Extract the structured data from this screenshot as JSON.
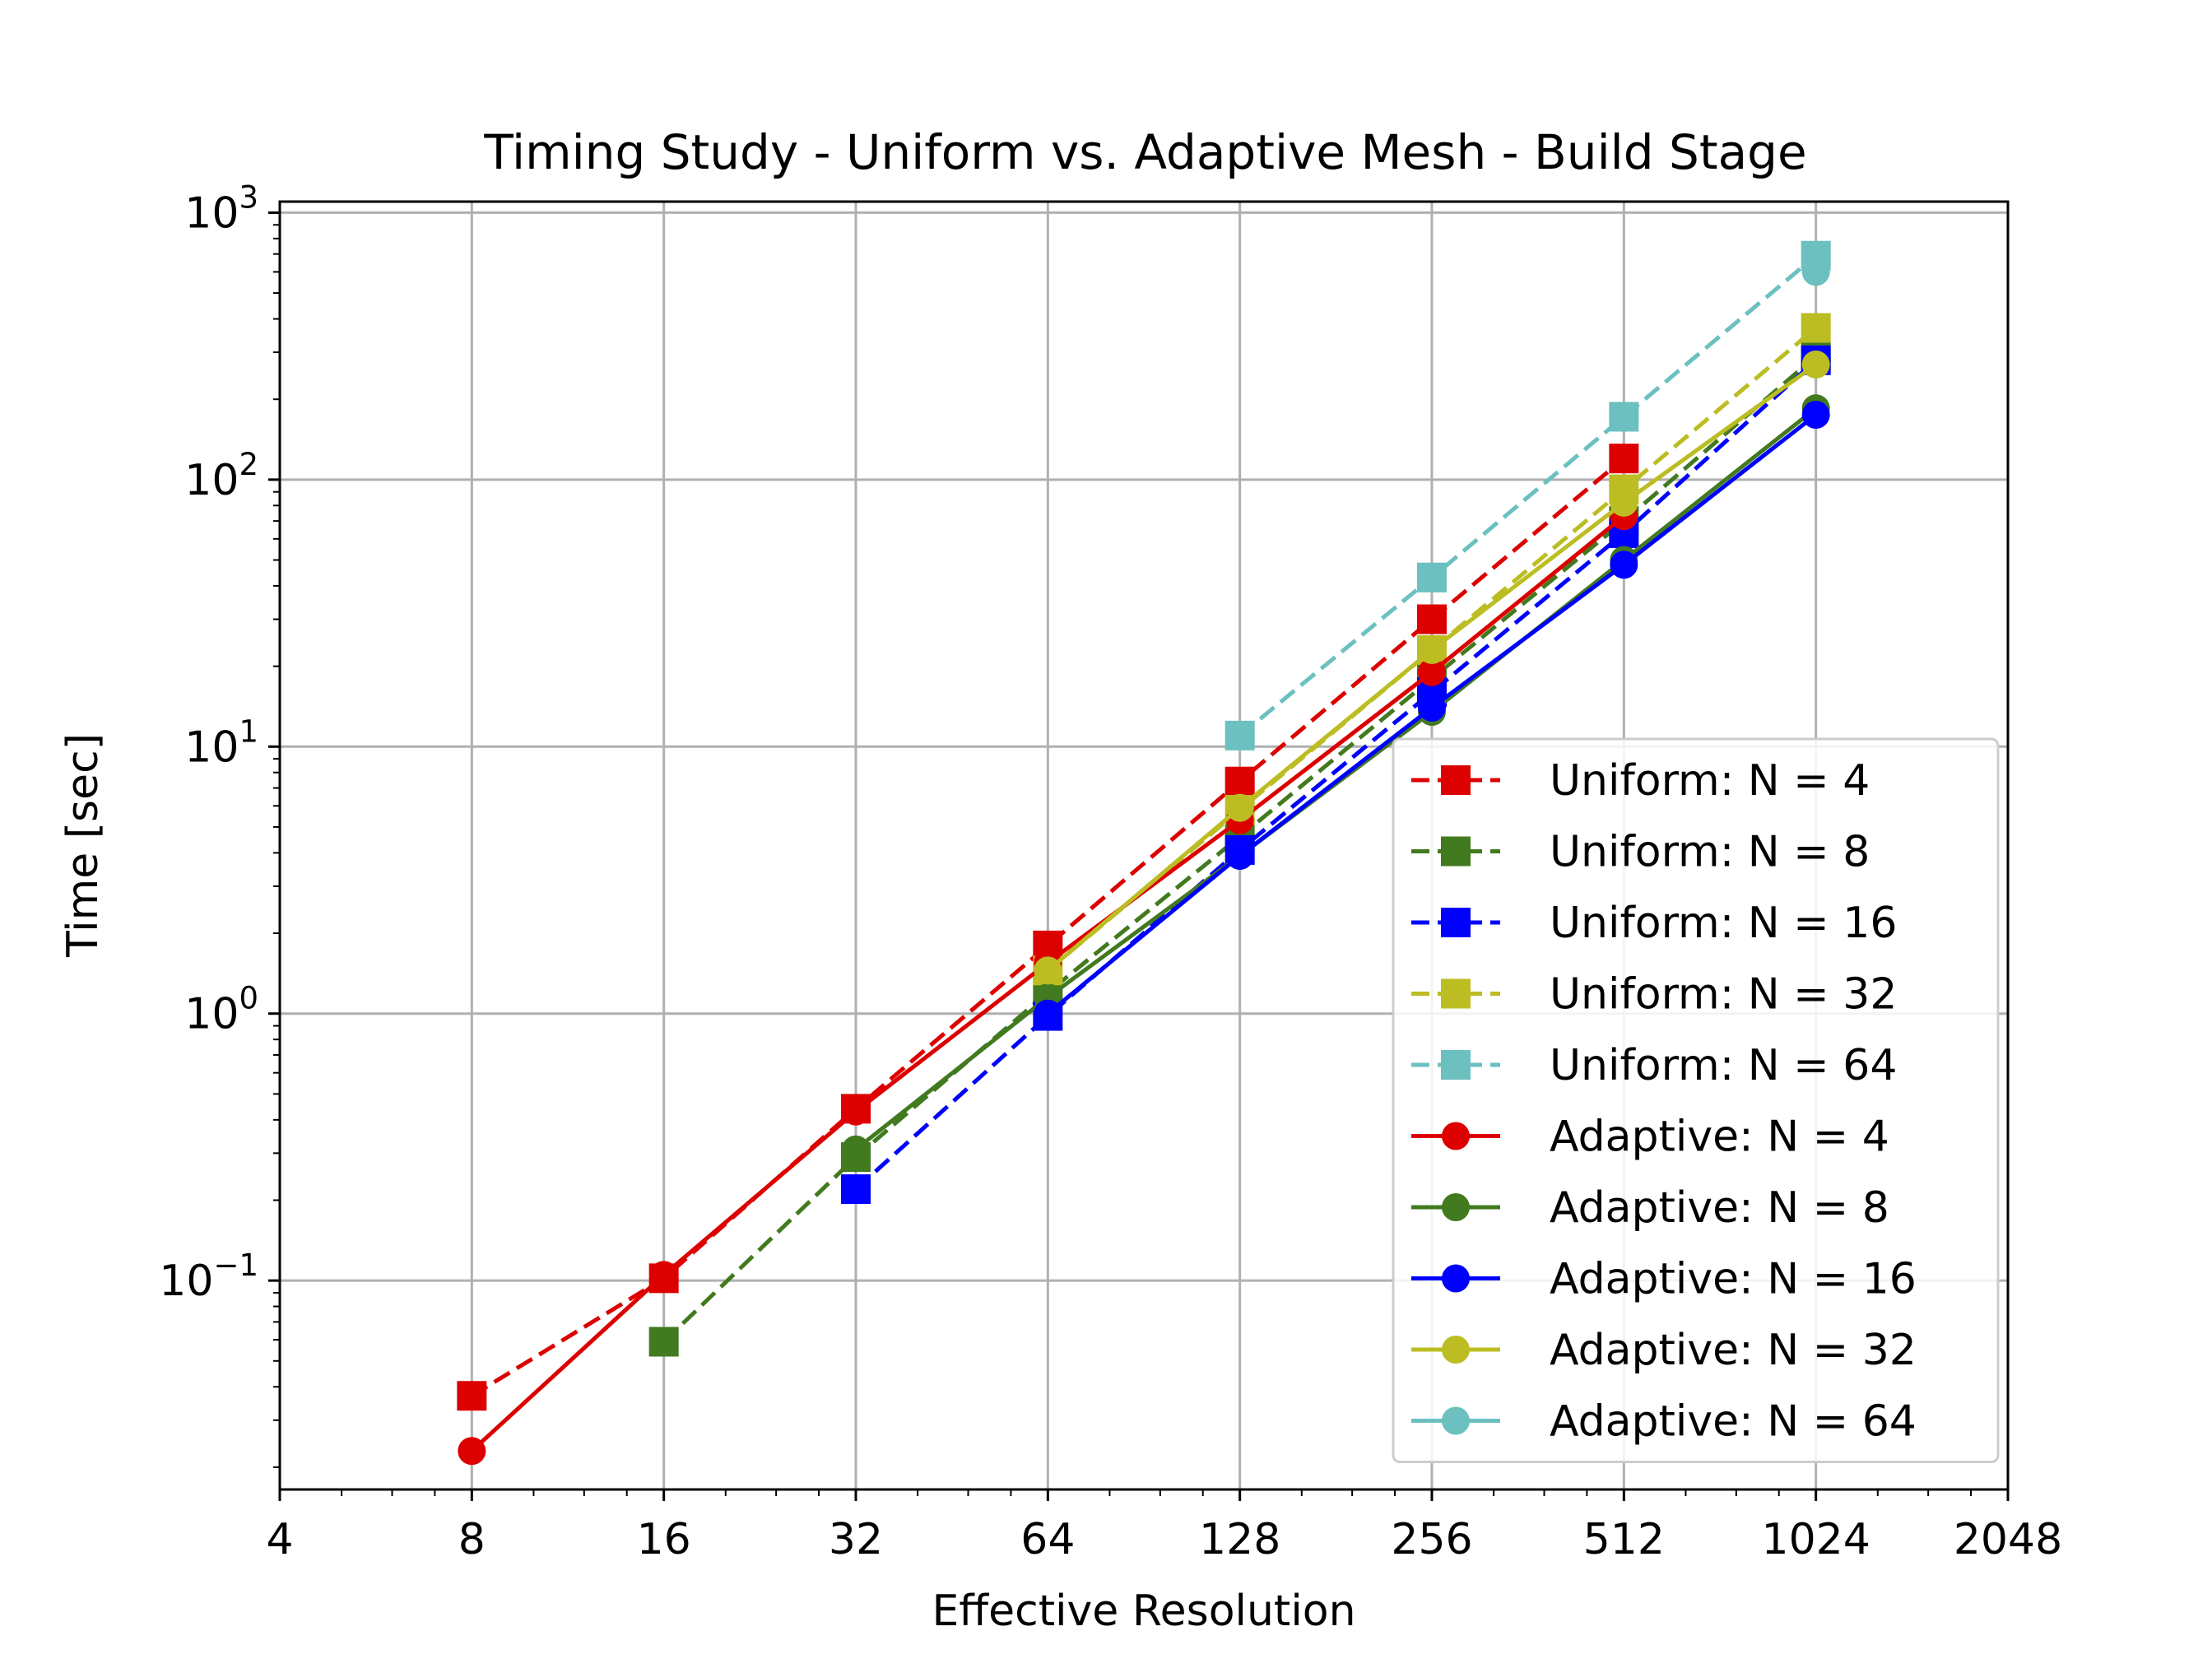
{
  "chart_data": {
    "type": "line",
    "title": "Timing Study - Uniform vs. Adaptive Mesh - Build Stage",
    "xlabel": "Effective Resolution",
    "ylabel": "Time [sec]",
    "x_scale": "log2",
    "y_scale": "log10",
    "xlim": [
      4,
      2048
    ],
    "ylim": [
      0.0165,
      1100
    ],
    "x_ticks": [
      4,
      8,
      16,
      32,
      64,
      128,
      256,
      512,
      1024,
      2048
    ],
    "x_tick_labels": [
      "4",
      "8",
      "16",
      "32",
      "64",
      "128",
      "256",
      "512",
      "1024",
      "2048"
    ],
    "y_ticks": [
      {
        "value": 0.1,
        "base": "10",
        "exp": "−1"
      },
      {
        "value": 1,
        "base": "10",
        "exp": "0"
      },
      {
        "value": 10,
        "base": "10",
        "exp": "1"
      },
      {
        "value": 100,
        "base": "10",
        "exp": "2"
      },
      {
        "value": 1000,
        "base": "10",
        "exp": "3"
      }
    ],
    "grid": true,
    "legend_position": "lower-right",
    "series": [
      {
        "name": "Uniform: N = 4",
        "color": "#dd0000",
        "dash": "dashed",
        "marker": "square",
        "points": [
          [
            8,
            0.037
          ],
          [
            16,
            0.102
          ],
          [
            32,
            0.44
          ],
          [
            64,
            1.8
          ],
          [
            128,
            7.4
          ],
          [
            256,
            30
          ],
          [
            512,
            120
          ]
        ]
      },
      {
        "name": "Uniform: N = 8",
        "color": "#427a1f",
        "dash": "dashed",
        "marker": "square",
        "points": [
          [
            16,
            0.059
          ],
          [
            32,
            0.29
          ],
          [
            64,
            1.2
          ],
          [
            128,
            4.6
          ],
          [
            256,
            18
          ],
          [
            512,
            70
          ],
          [
            1024,
            290
          ]
        ]
      },
      {
        "name": "Uniform: N = 16",
        "color": "#0000ff",
        "dash": "dashed",
        "marker": "square",
        "points": [
          [
            32,
            0.22
          ],
          [
            64,
            0.98
          ],
          [
            128,
            4.1
          ],
          [
            256,
            16
          ],
          [
            512,
            63
          ],
          [
            1024,
            280
          ]
        ]
      },
      {
        "name": "Uniform: N = 32",
        "color": "#bcbd22",
        "dash": "dashed",
        "marker": "square",
        "points": [
          [
            64,
            1.45
          ],
          [
            128,
            5.8
          ],
          [
            256,
            23
          ],
          [
            512,
            92
          ],
          [
            1024,
            370
          ]
        ]
      },
      {
        "name": "Uniform: N = 64",
        "color": "#6cc0c0",
        "dash": "dashed",
        "marker": "square",
        "points": [
          [
            128,
            11
          ],
          [
            256,
            43
          ],
          [
            512,
            172
          ],
          [
            1024,
            690
          ]
        ]
      },
      {
        "name": "Adaptive: N = 4",
        "color": "#dd0000",
        "dash": "solid",
        "marker": "circle",
        "points": [
          [
            8,
            0.023
          ],
          [
            16,
            0.105
          ],
          [
            32,
            0.43
          ],
          [
            64,
            1.55
          ],
          [
            128,
            5.3
          ],
          [
            256,
            19
          ],
          [
            512,
            73
          ]
        ]
      },
      {
        "name": "Adaptive: N = 8",
        "color": "#427a1f",
        "dash": "solid",
        "marker": "circle",
        "points": [
          [
            32,
            0.31
          ],
          [
            64,
            1.15
          ],
          [
            128,
            3.9
          ],
          [
            256,
            13.5
          ],
          [
            512,
            50
          ],
          [
            1024,
            185
          ]
        ]
      },
      {
        "name": "Adaptive: N = 16",
        "color": "#0000ff",
        "dash": "solid",
        "marker": "circle",
        "points": [
          [
            64,
            1.0
          ],
          [
            128,
            3.9
          ],
          [
            256,
            14
          ],
          [
            512,
            48
          ],
          [
            1024,
            175
          ]
        ]
      },
      {
        "name": "Adaptive: N = 32",
        "color": "#bcbd22",
        "dash": "solid",
        "marker": "circle",
        "points": [
          [
            64,
            1.45
          ],
          [
            128,
            5.9
          ],
          [
            256,
            23
          ],
          [
            512,
            82
          ],
          [
            1024,
            270
          ]
        ]
      },
      {
        "name": "Adaptive: N = 64",
        "color": "#6cc0c0",
        "dash": "solid",
        "marker": "circle",
        "points": [
          [
            1024,
            600
          ]
        ]
      }
    ]
  }
}
